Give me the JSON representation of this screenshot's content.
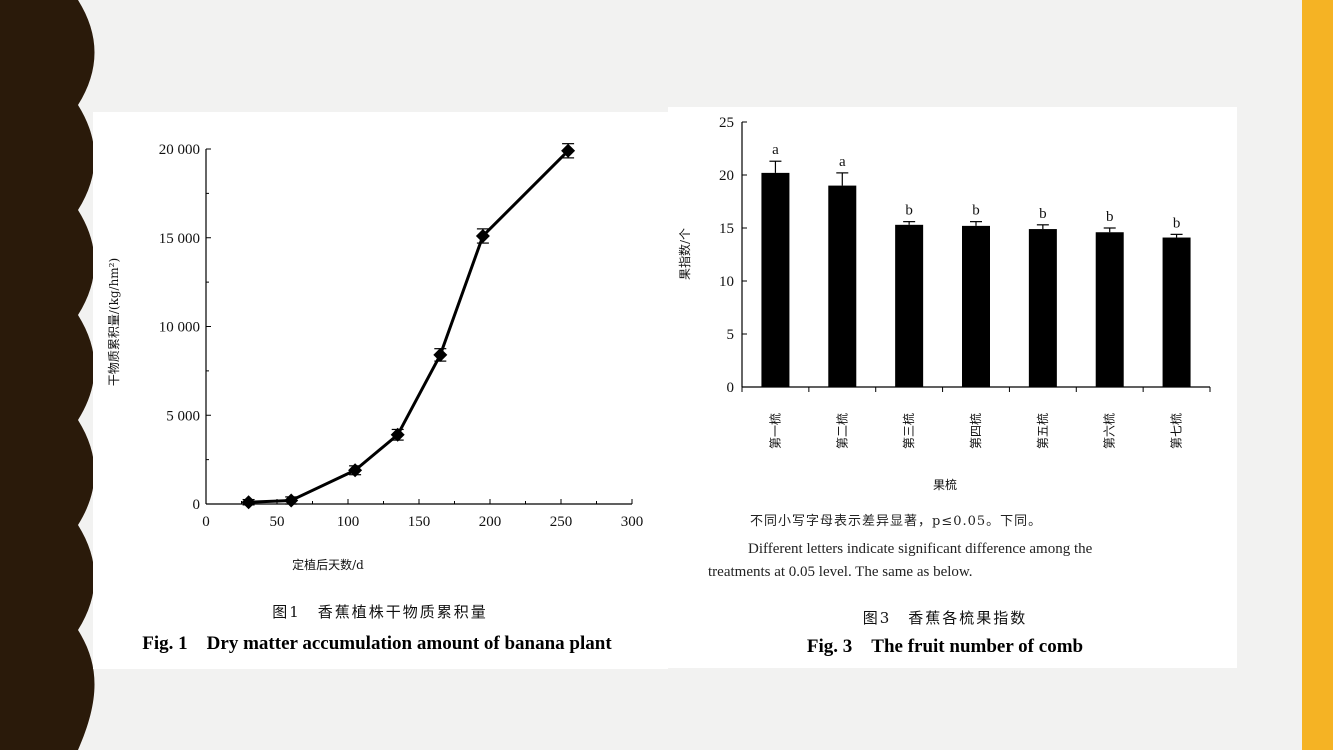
{
  "chart_data": [
    {
      "type": "line",
      "x": [
        30,
        60,
        105,
        135,
        165,
        195,
        255
      ],
      "y": [
        100,
        200,
        1900,
        3900,
        8400,
        15100,
        19900
      ],
      "error": [
        150,
        200,
        250,
        300,
        350,
        400,
        400
      ],
      "xlim": [
        0,
        300
      ],
      "ylim": [
        0,
        20000
      ],
      "xticks": [
        0,
        50,
        100,
        150,
        200,
        250,
        300
      ],
      "xtick_labels": [
        "0",
        "50",
        "100",
        "150",
        "200",
        "250",
        "300"
      ],
      "yticks": [
        0,
        5000,
        10000,
        15000,
        20000
      ],
      "ytick_labels": [
        "0",
        "5 000",
        "10 000",
        "15 000",
        "20 000"
      ],
      "xlabel": "定植后天数/d",
      "ylabel": "干物质累积量/(kg/hm²)",
      "caption_zh": "图1　香蕉植株干物质累积量",
      "caption_en": "Fig. 1　Dry matter accumulation amount of banana plant",
      "marker": "diamond",
      "grid": false
    },
    {
      "type": "bar",
      "categories": [
        "第一梳",
        "第二梳",
        "第三梳",
        "第四梳",
        "第五梳",
        "第六梳",
        "第七梳"
      ],
      "values": [
        20.2,
        19.0,
        15.3,
        15.2,
        14.9,
        14.6,
        14.1
      ],
      "error": [
        1.1,
        1.2,
        0.3,
        0.4,
        0.4,
        0.4,
        0.3
      ],
      "significance": [
        "a",
        "a",
        "b",
        "b",
        "b",
        "b",
        "b"
      ],
      "ylim": [
        0,
        25
      ],
      "yticks": [
        0,
        5,
        10,
        15,
        20,
        25
      ],
      "ytick_labels": [
        "0",
        "5",
        "10",
        "15",
        "20",
        "25"
      ],
      "xlabel": "果梳",
      "ylabel": "果指数/个",
      "note_zh": "不同小写字母表示差异显著，p≤0.05。下同。",
      "note_en_line1": "Different letters indicate significant difference among the",
      "note_en_line2": "treatments at 0.05 level. The same as below.",
      "caption_zh": "图3　香蕉各梳果指数",
      "caption_en": "Fig. 3　The fruit number of comb",
      "bar_color": "#000000",
      "grid": false
    }
  ],
  "colors": {
    "left_band": "#2a1a0a",
    "right_band": "#f5b324",
    "background": "#f2f2f1"
  }
}
